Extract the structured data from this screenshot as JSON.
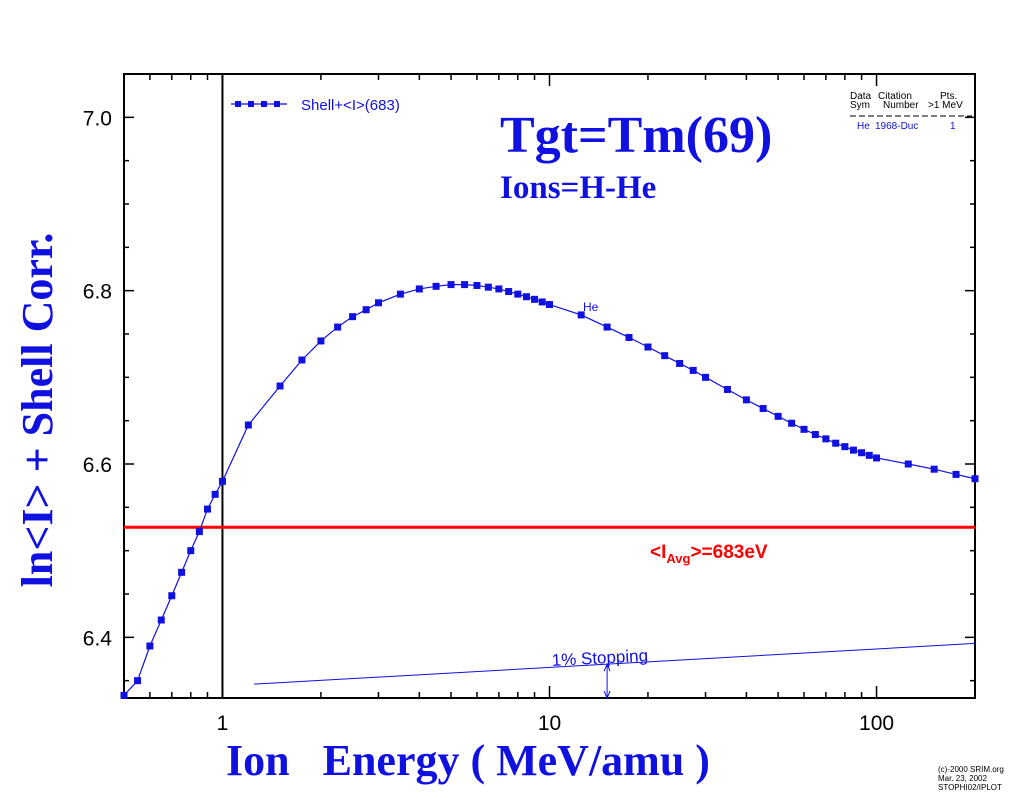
{
  "chart_data": {
    "type": "line",
    "title": "Tgt=Tm(69)",
    "subtitle": "Ions=H-He",
    "xlabel": "Ion   Energy ( MeV/amu )",
    "ylabel": "ln<I> + Shell Corr.",
    "x_scale": "log",
    "xlim": [
      0.5,
      200
    ],
    "ylim": [
      6.33,
      7.05
    ],
    "x_ticks": [
      {
        "value": 1,
        "label": "1"
      },
      {
        "value": 10,
        "label": "10"
      },
      {
        "value": 100,
        "label": "100"
      }
    ],
    "y_ticks": [
      {
        "value": 6.4,
        "label": "6.4"
      },
      {
        "value": 6.6,
        "label": "6.6"
      },
      {
        "value": 6.8,
        "label": "6.8"
      },
      {
        "value": 7.0,
        "label": "7.0"
      }
    ],
    "series": [
      {
        "name": "Shell+<I>(683)",
        "color": "#1010e0",
        "marker": "square",
        "x": [
          0.5,
          0.55,
          0.6,
          0.65,
          0.7,
          0.75,
          0.8,
          0.85,
          0.9,
          0.95,
          1.0,
          1.2,
          1.5,
          1.75,
          2.0,
          2.25,
          2.5,
          2.75,
          3.0,
          3.5,
          4.0,
          4.5,
          5.0,
          5.5,
          6.0,
          6.5,
          7.0,
          7.5,
          8.0,
          8.5,
          9.0,
          9.5,
          10.0,
          12.5,
          15,
          17.5,
          20,
          22.5,
          25,
          27.5,
          30,
          35,
          40,
          45,
          50,
          55,
          60,
          65,
          70,
          75,
          80,
          85,
          90,
          95,
          100,
          125,
          150,
          175,
          200
        ],
        "y": [
          6.333,
          6.35,
          6.39,
          6.42,
          6.448,
          6.475,
          6.5,
          6.522,
          6.548,
          6.565,
          6.58,
          6.645,
          6.69,
          6.72,
          6.742,
          6.758,
          6.77,
          6.778,
          6.786,
          6.796,
          6.802,
          6.805,
          6.807,
          6.807,
          6.806,
          6.804,
          6.802,
          6.799,
          6.796,
          6.793,
          6.79,
          6.787,
          6.784,
          6.772,
          6.758,
          6.746,
          6.735,
          6.725,
          6.716,
          6.708,
          6.7,
          6.686,
          6.674,
          6.664,
          6.655,
          6.647,
          6.64,
          6.634,
          6.629,
          6.624,
          6.62,
          6.616,
          6.613,
          6.61,
          6.607,
          6.6,
          6.594,
          6.588,
          6.583
        ]
      }
    ],
    "reference_lines": [
      {
        "kind": "horizontal",
        "y": 6.527,
        "label": "<IAvg>=683eV",
        "color": "#ff0000"
      },
      {
        "kind": "vertical",
        "x": 1,
        "color": "#000000"
      }
    ],
    "point_label": {
      "text": "He",
      "x": 13,
      "y": 6.78
    },
    "stopping_line": {
      "label": "1% Stopping",
      "x": [
        1.25,
        200
      ],
      "y": [
        6.346,
        6.393
      ],
      "arrow_x": 15
    },
    "citation": {
      "header_line1": [
        "Data",
        "Citation",
        "Pts."
      ],
      "header_line2": [
        "Sym",
        "Number",
        ">1 MeV"
      ],
      "rows": [
        [
          "He",
          "1968-Duc",
          "1"
        ]
      ]
    },
    "copyright": [
      "(c)-2000 SRIM.org",
      "Mar. 23, 2002",
      "STOPHI02/IPLOT"
    ],
    "grid": false,
    "legend_position": "top-left"
  }
}
